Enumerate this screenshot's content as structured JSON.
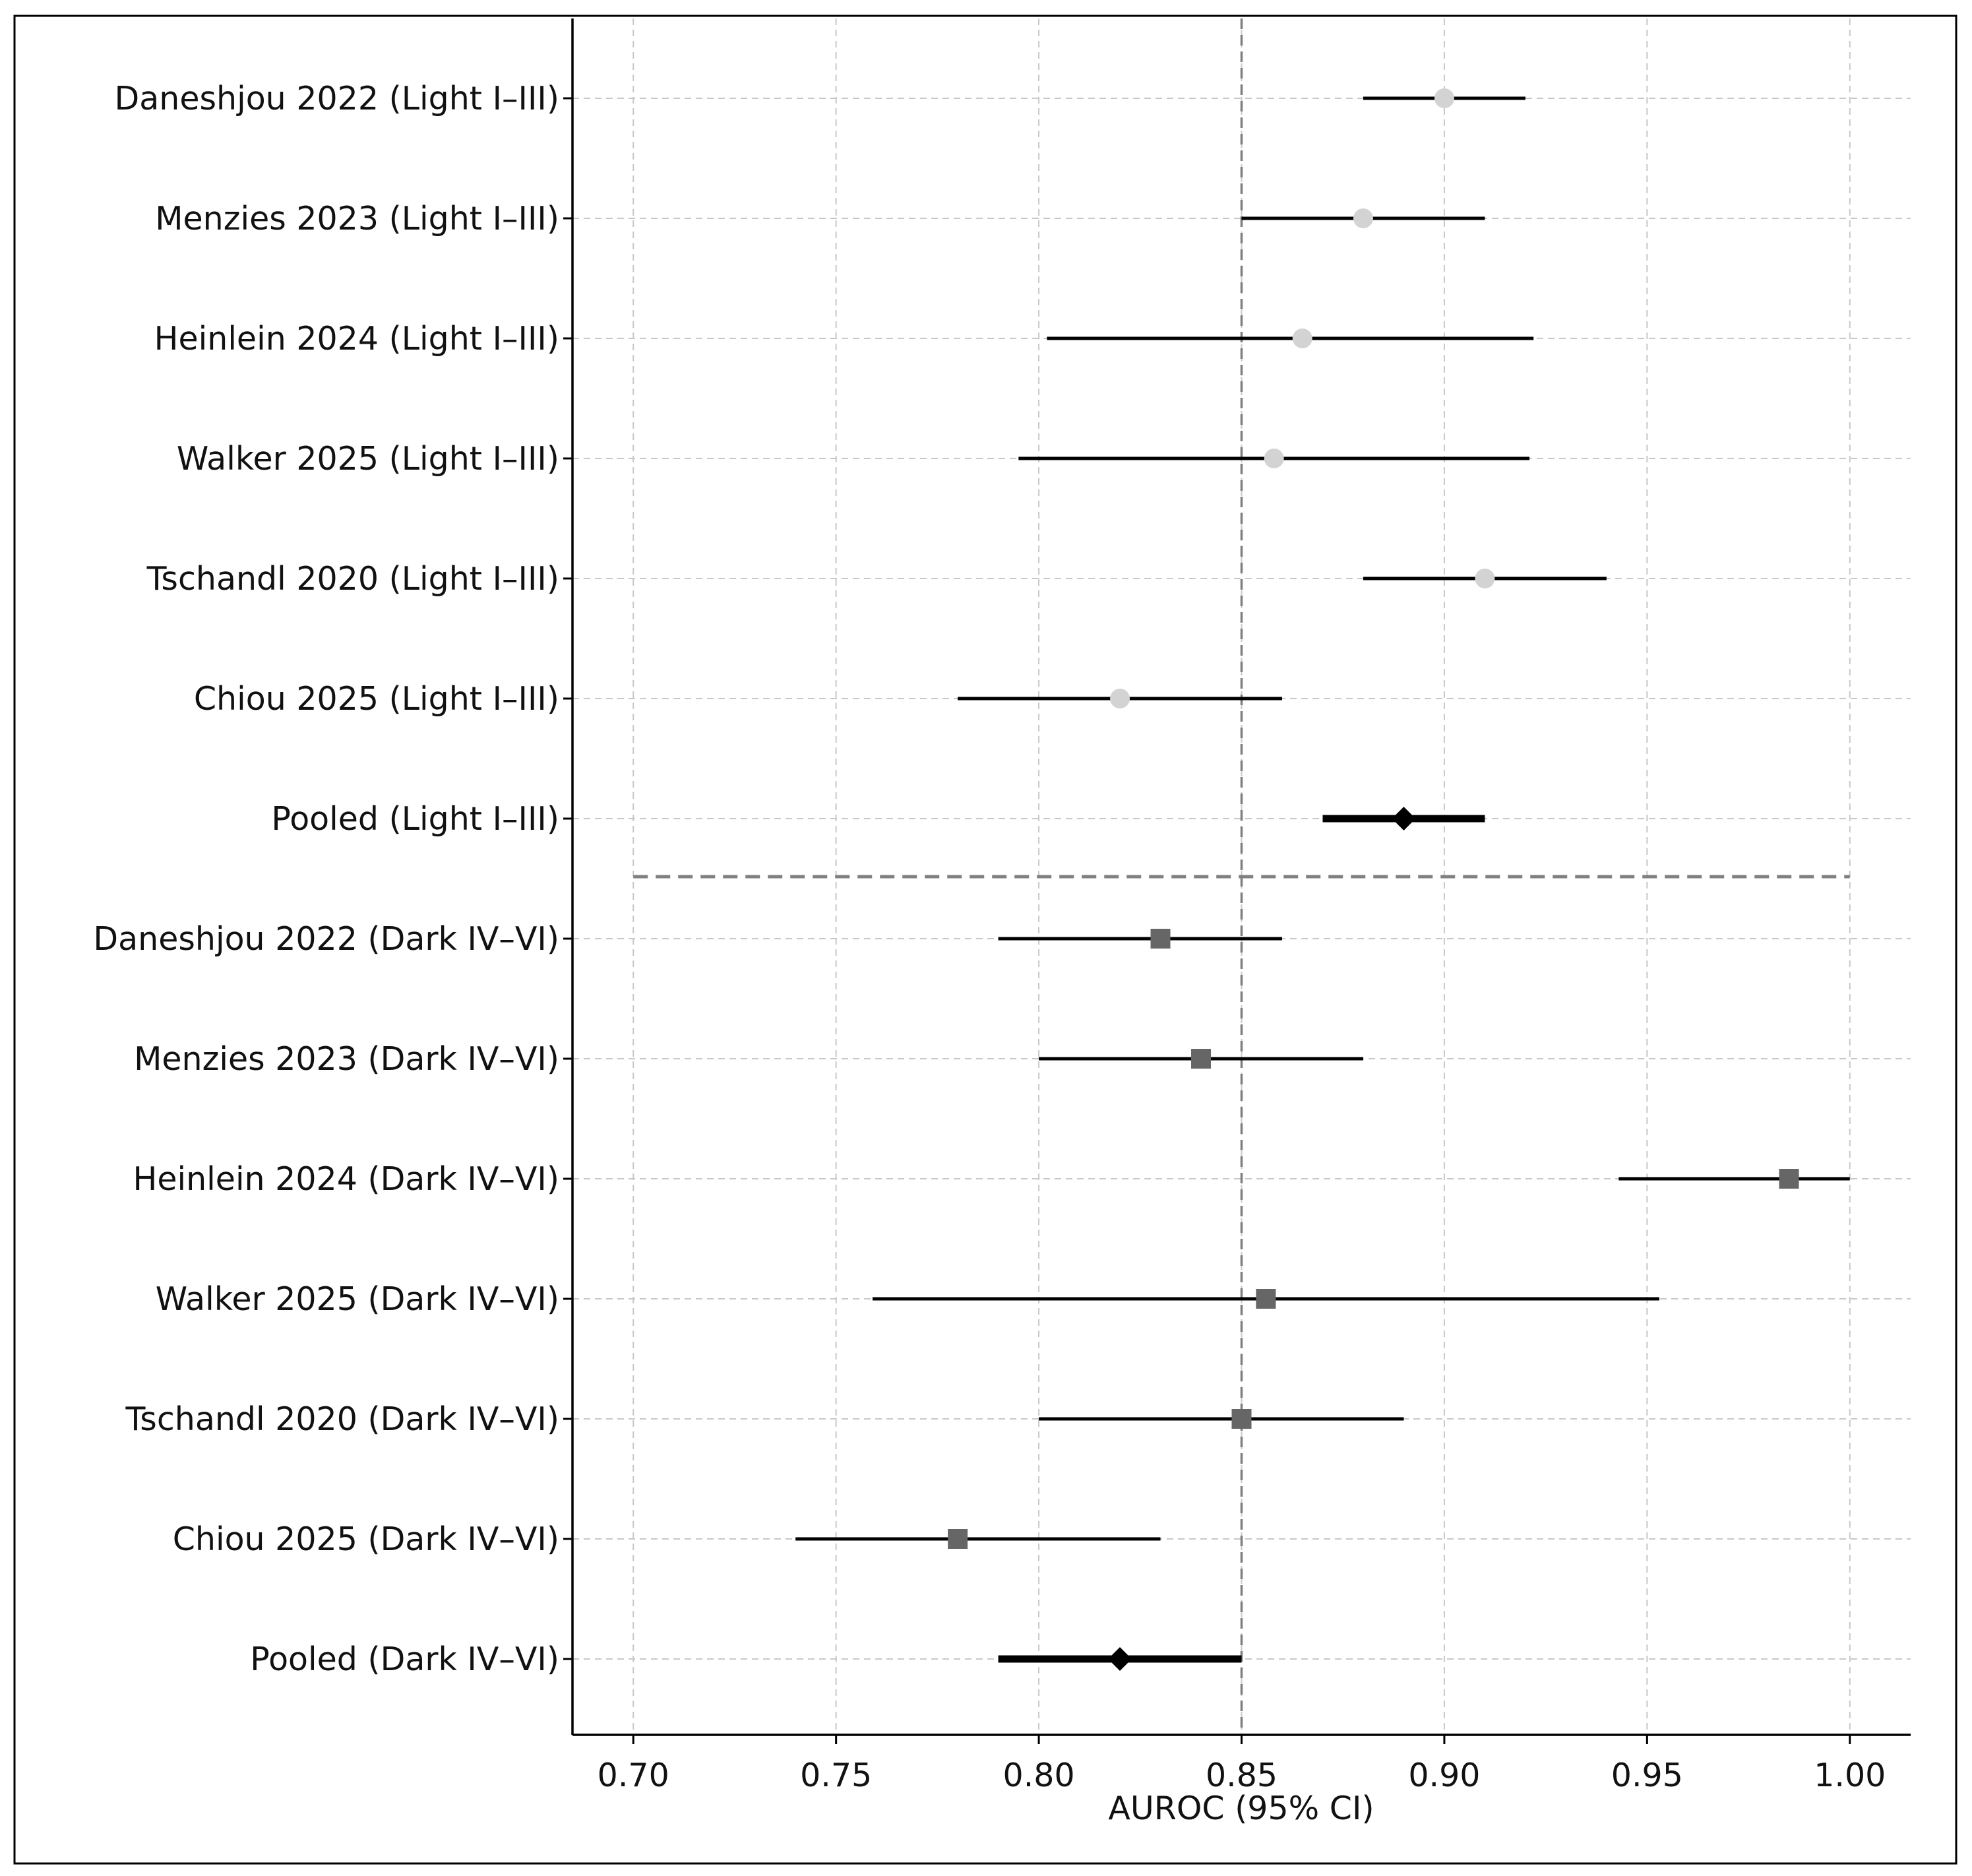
{
  "chart_data": {
    "type": "forest",
    "xlabel": "AUROC (95% CI)",
    "xlim": [
      0.685,
      1.015
    ],
    "x_ticks": [
      0.7,
      0.75,
      0.8,
      0.85,
      0.9,
      0.95,
      1.0
    ],
    "x_tick_labels": [
      "0.70",
      "0.75",
      "0.80",
      "0.85",
      "0.90",
      "0.95",
      "1.00"
    ],
    "reference_line": 0.85,
    "grid": true,
    "groups": [
      {
        "marker": "circle",
        "marker_color": "#d3d3d3",
        "studies": [
          {
            "label": "Daneshjou 2022 (Light I–III)",
            "estimate": 0.9,
            "ci_low": 0.88,
            "ci_high": 0.92
          },
          {
            "label": "Menzies 2023 (Light I–III)",
            "estimate": 0.88,
            "ci_low": 0.85,
            "ci_high": 0.91
          },
          {
            "label": "Heinlein 2024 (Light I–III)",
            "estimate": 0.865,
            "ci_low": 0.802,
            "ci_high": 0.922
          },
          {
            "label": "Walker 2025 (Light I–III)",
            "estimate": 0.858,
            "ci_low": 0.795,
            "ci_high": 0.921
          },
          {
            "label": "Tschandl 2020 (Light I–III)",
            "estimate": 0.91,
            "ci_low": 0.88,
            "ci_high": 0.94
          },
          {
            "label": "Chiou 2025 (Light I–III)",
            "estimate": 0.82,
            "ci_low": 0.78,
            "ci_high": 0.86
          }
        ],
        "pooled": {
          "label": "Pooled (Light I–III)",
          "estimate": 0.89,
          "ci_low": 0.87,
          "ci_high": 0.91
        }
      },
      {
        "marker": "square",
        "marker_color": "#666666",
        "studies": [
          {
            "label": "Daneshjou 2022 (Dark IV–VI)",
            "estimate": 0.83,
            "ci_low": 0.79,
            "ci_high": 0.86
          },
          {
            "label": "Menzies 2023 (Dark IV–VI)",
            "estimate": 0.84,
            "ci_low": 0.8,
            "ci_high": 0.88
          },
          {
            "label": "Heinlein 2024 (Dark IV–VI)",
            "estimate": 0.985,
            "ci_low": 0.943,
            "ci_high": 1.0
          },
          {
            "label": "Walker 2025 (Dark IV–VI)",
            "estimate": 0.856,
            "ci_low": 0.759,
            "ci_high": 0.953
          },
          {
            "label": "Tschandl 2020 (Dark IV–VI)",
            "estimate": 0.85,
            "ci_low": 0.8,
            "ci_high": 0.89
          },
          {
            "label": "Chiou 2025 (Dark IV–VI)",
            "estimate": 0.78,
            "ci_low": 0.74,
            "ci_high": 0.83
          }
        ],
        "pooled": {
          "label": "Pooled (Dark IV–VI)",
          "estimate": 0.82,
          "ci_low": 0.79,
          "ci_high": 0.85
        }
      }
    ],
    "pooled_marker": "diamond",
    "pooled_color": "#000000",
    "ci_color": "#000000",
    "reference_line_color": "#808080",
    "grid_color": "#c8c8c8",
    "group_separator_color": "#808080"
  }
}
